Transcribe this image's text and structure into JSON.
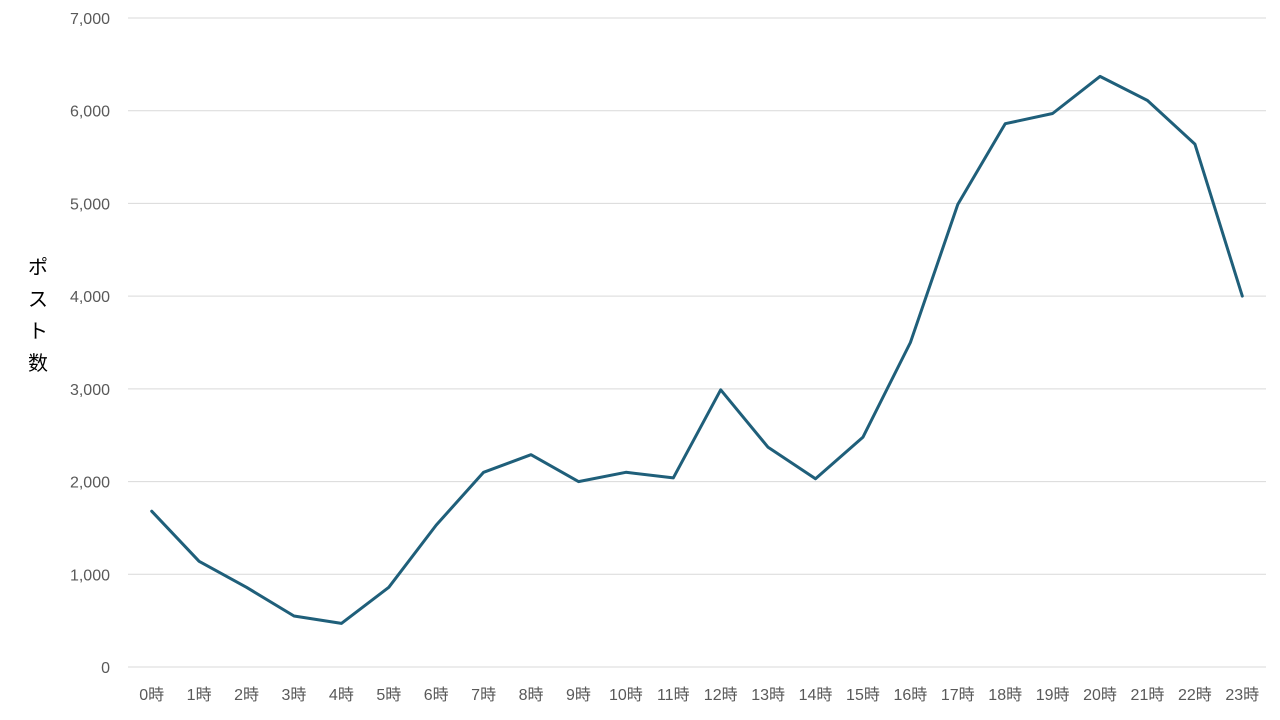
{
  "chart_data": {
    "type": "line",
    "title": "",
    "xlabel": "",
    "ylabel": "ポスト数",
    "ylim": [
      0,
      7000
    ],
    "yticks": [
      0,
      1000,
      2000,
      3000,
      4000,
      5000,
      6000,
      7000
    ],
    "ytick_labels": [
      "0",
      "1,000",
      "2,000",
      "3,000",
      "4,000",
      "5,000",
      "6,000",
      "7,000"
    ],
    "grid": "horizontal",
    "legend": "none",
    "categories": [
      "0時",
      "1時",
      "2時",
      "3時",
      "4時",
      "5時",
      "6時",
      "7時",
      "8時",
      "9時",
      "10時",
      "11時",
      "12時",
      "13時",
      "14時",
      "15時",
      "16時",
      "17時",
      "18時",
      "19時",
      "20時",
      "21時",
      "22時",
      "23時"
    ],
    "series": [
      {
        "values": [
          1680,
          1140,
          860,
          550,
          470,
          860,
          1530,
          2100,
          2290,
          2000,
          2100,
          2040,
          2990,
          2370,
          2030,
          2480,
          3500,
          4990,
          5860,
          5970,
          6370,
          6110,
          5640,
          4000
        ],
        "color": "#1f5f7a"
      }
    ],
    "colors": {
      "line": "#1f5f7a",
      "grid": "#d9d9d9",
      "tick_text": "#595959",
      "axis_label": "#000000"
    }
  }
}
